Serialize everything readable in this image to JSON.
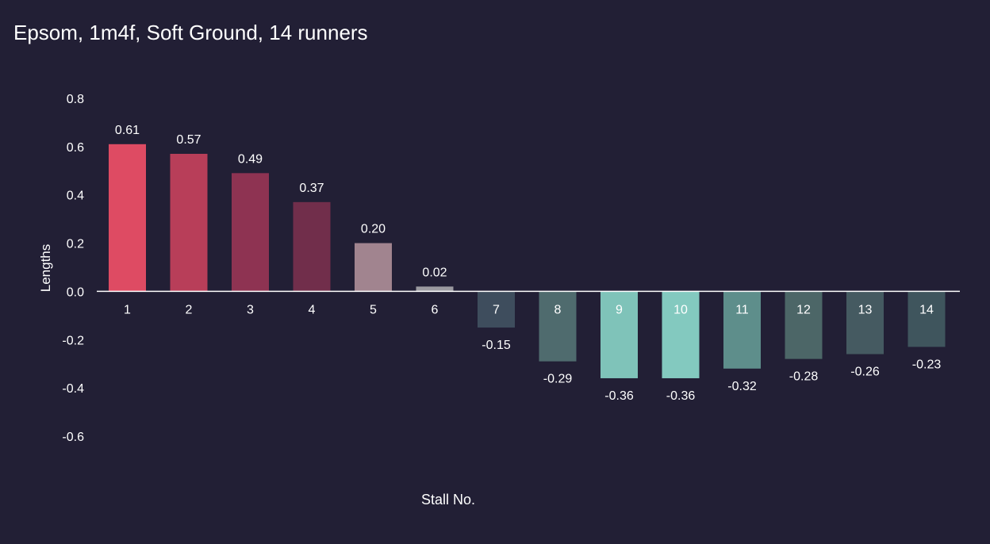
{
  "chart_data": {
    "type": "bar",
    "title": "Epsom, 1m4f, Soft Ground, 14 runners",
    "xlabel": "Stall No.",
    "ylabel": "Lengths",
    "categories": [
      "1",
      "2",
      "3",
      "4",
      "5",
      "6",
      "7",
      "8",
      "9",
      "10",
      "11",
      "12",
      "13",
      "14"
    ],
    "values": [
      0.61,
      0.57,
      0.49,
      0.37,
      0.2,
      0.02,
      -0.15,
      -0.29,
      -0.36,
      -0.36,
      -0.32,
      -0.28,
      -0.26,
      -0.23
    ],
    "data_labels": [
      "0.61",
      "0.57",
      "0.49",
      "0.37",
      "0.20",
      "0.02",
      "-0.15",
      "-0.29",
      "-0.36",
      "-0.36",
      "-0.32",
      "-0.28",
      "-0.26",
      "-0.23"
    ],
    "bar_colors": [
      "#de4b63",
      "#b83e59",
      "#8e3352",
      "#712e4b",
      "#a1848f",
      "#9b9aa0",
      "#3e4d5d",
      "#4f6b6e",
      "#7fc3b9",
      "#83c9bf",
      "#5e8e8b",
      "#4c6667",
      "#455a61",
      "#3f555d"
    ],
    "ylim": [
      -0.6,
      0.8
    ],
    "yticks": [
      "0.8",
      "0.6",
      "0.4",
      "0.2",
      "0.0",
      "-0.2",
      "-0.4",
      "-0.6"
    ],
    "grid": false,
    "legend": "none",
    "colors": {
      "background": "#221f35",
      "text": "#ffffff",
      "zero_line": "#ffffff"
    }
  }
}
